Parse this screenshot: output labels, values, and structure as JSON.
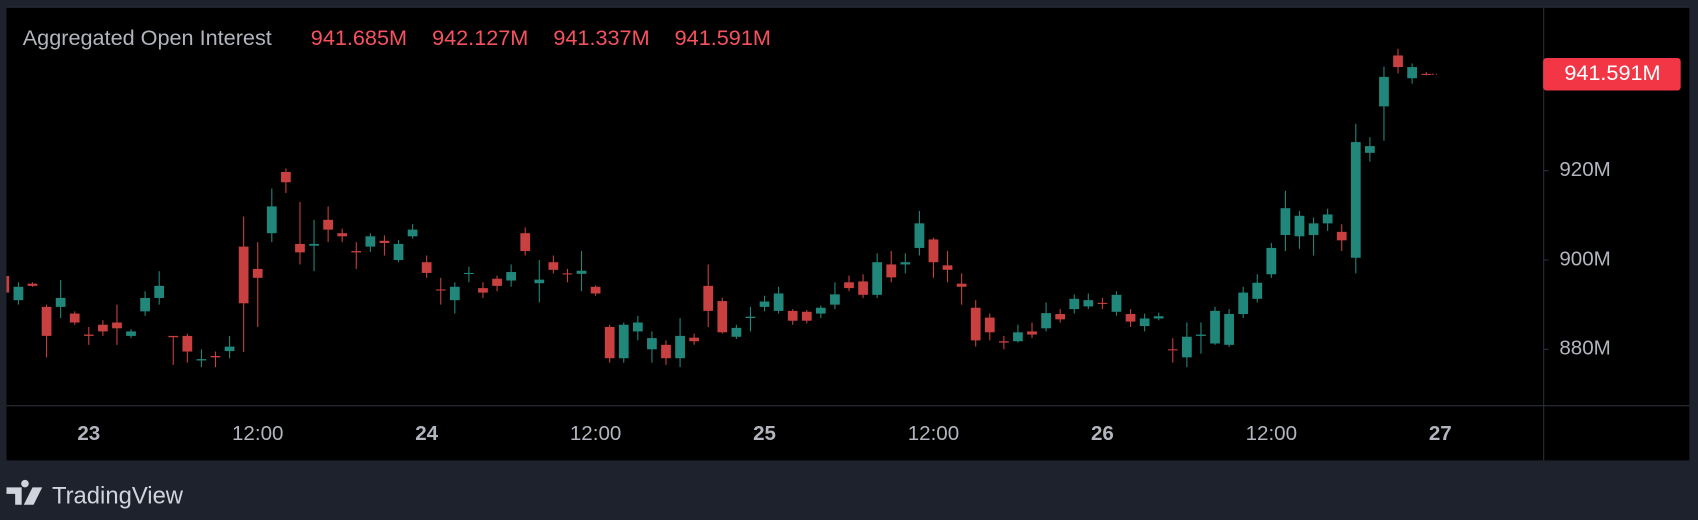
{
  "chart_data": {
    "type": "candlestick",
    "title": "Aggregated Open Interest",
    "last_value_labels": [
      "941.685M",
      "942.127M",
      "941.337M",
      "941.591M"
    ],
    "source": "TradingView",
    "up_color": "#22877b",
    "down_color": "#c8403f",
    "label_color": "#f7525f",
    "grid": false,
    "categories": [
      null,
      null,
      null,
      null,
      null,
      null,
      "23",
      null,
      null,
      null,
      null,
      null,
      null,
      null,
      null,
      null,
      null,
      null,
      "12:00",
      null,
      null,
      null,
      null,
      null,
      null,
      null,
      null,
      null,
      null,
      null,
      "24",
      null,
      null,
      null,
      null,
      null,
      null,
      null,
      null,
      null,
      null,
      null,
      "12:00",
      null,
      null,
      null,
      null,
      null,
      null,
      null,
      null,
      null,
      null,
      null,
      "25",
      null,
      null,
      null,
      null,
      null,
      null,
      null,
      null,
      null,
      null,
      null,
      "12:00",
      null,
      null,
      null,
      null,
      null,
      null,
      null,
      null,
      null,
      null,
      null,
      "26",
      null,
      null,
      null,
      null,
      null,
      null,
      null,
      null,
      null,
      null,
      null,
      "12:00",
      null,
      null,
      null,
      null,
      null,
      null,
      null,
      null,
      null,
      null,
      null,
      "27"
    ],
    "series": [
      {
        "name": "Aggregated Open Interest",
        "open": [
          896.4,
          891,
          894.7,
          889.5,
          889.5,
          888,
          883.3,
          885.5,
          886,
          883,
          888.5,
          891.5,
          883,
          883,
          877.5,
          878.5,
          879.6,
          903,
          898,
          906,
          919.7,
          903.6,
          903.2,
          909,
          906,
          902,
          903,
          904.3,
          900,
          905.3,
          899.5,
          893.4,
          891,
          896.9,
          893.7,
          895.8,
          895.4,
          906,
          894.8,
          899.5,
          897,
          896.9,
          894,
          885,
          878,
          884,
          880,
          881,
          878,
          882.6,
          894.2,
          890.8,
          882.8,
          887,
          889.5,
          888.6,
          888.6,
          888.4,
          888,
          890,
          895,
          895.2,
          892.2,
          899,
          899,
          902.7,
          904.6,
          898.8,
          894.7,
          889.3,
          887.1,
          881.8,
          881.8,
          884,
          884.7,
          887.9,
          889,
          889.6,
          890.4,
          888.4,
          887.9,
          885.2,
          886.9,
          880,
          878.2,
          883,
          881.3,
          881,
          887.9,
          891.3,
          896.8,
          905.6,
          905.3,
          905.6,
          908.2,
          906.3,
          900.5,
          924,
          934.4,
          945.8,
          940.7,
          941.685,
          null
        ],
        "high": [
          897.6,
          895,
          895,
          890,
          895.5,
          888.5,
          885,
          886.5,
          890,
          884.5,
          893,
          897.5,
          883,
          883.5,
          880,
          879.5,
          883,
          909.7,
          904,
          916,
          920.5,
          913,
          909,
          912,
          907,
          904,
          906,
          905.5,
          904.5,
          908,
          901,
          896,
          895,
          898.5,
          895,
          896.5,
          899,
          907.3,
          900,
          901,
          898,
          902,
          894.3,
          885.5,
          886,
          887.5,
          884,
          882,
          887,
          883.5,
          899,
          891.5,
          885.5,
          889.5,
          892,
          894,
          889,
          888.8,
          889.8,
          895,
          896.5,
          896.8,
          901.5,
          902,
          901.5,
          911,
          905,
          902,
          897,
          891,
          888,
          883,
          885.5,
          886,
          890.5,
          889,
          892.3,
          892.5,
          891.5,
          893,
          889,
          888,
          888.2,
          882.5,
          886,
          886,
          889.5,
          889,
          894,
          896.8,
          903.8,
          915.5,
          911,
          909.5,
          911.5,
          908,
          930.5,
          927.5,
          943.3,
          947.3,
          944,
          942.127,
          null
        ],
        "low": [
          891.5,
          890,
          894,
          878.2,
          887,
          885.5,
          881,
          883,
          881,
          882.5,
          887.5,
          890,
          876.5,
          877,
          876,
          876,
          878,
          879.4,
          885,
          904,
          915,
          899,
          897.5,
          904,
          904,
          898,
          901.8,
          901,
          899.5,
          904.8,
          896,
          890,
          888,
          895,
          891.5,
          893,
          894,
          901,
          890.5,
          897,
          895,
          893,
          892,
          877,
          877,
          882,
          877,
          876.5,
          876,
          881,
          885,
          883.5,
          882.3,
          884,
          888.5,
          888,
          885.5,
          885.8,
          887,
          889,
          893,
          891.5,
          891.5,
          895,
          897,
          901,
          896,
          895,
          890,
          880.6,
          882,
          880,
          881.5,
          882.5,
          884,
          886,
          888,
          889,
          889,
          887.5,
          885,
          884,
          886.5,
          877,
          876,
          879,
          881,
          880.5,
          887,
          890.5,
          896,
          902,
          902.5,
          901,
          906.5,
          902,
          897,
          922,
          926.7,
          941.8,
          939.5,
          941.337,
          null
        ],
        "close": [
          892.7,
          894,
          894.2,
          883,
          891.5,
          886,
          883,
          884,
          884.7,
          884,
          891.5,
          894.2,
          882.7,
          879.5,
          877.8,
          878.2,
          880.6,
          890.3,
          896,
          912,
          917.4,
          901.7,
          903.6,
          906.8,
          905.3,
          901.7,
          905.3,
          903.8,
          903.6,
          906.8,
          897.1,
          893.2,
          894,
          897.1,
          892.7,
          894.2,
          897.3,
          902,
          895.6,
          897.8,
          896.9,
          897.6,
          892.5,
          878,
          885.5,
          886,
          882.5,
          878,
          883,
          881.8,
          888.6,
          883.8,
          884.8,
          887.3,
          890.7,
          892.5,
          886.4,
          886.4,
          889.3,
          892.3,
          893.7,
          892.2,
          899.5,
          896.1,
          899.5,
          908.2,
          899.5,
          897.8,
          894,
          882,
          883.8,
          881.5,
          883.8,
          883.3,
          888.1,
          886.7,
          891.3,
          891,
          890.2,
          892.2,
          886.2,
          886.9,
          887.4,
          879.8,
          882.8,
          883.3,
          888.6,
          887.9,
          892.7,
          894.9,
          902.7,
          911.6,
          909.9,
          908.2,
          910.2,
          904.4,
          926.4,
          925.5,
          941,
          943.2,
          943.2,
          941.591,
          null
        ]
      }
    ],
    "ylim": [
      867.5,
      956.5
    ],
    "yticks": [
      {
        "value": 880,
        "label": "880M"
      },
      {
        "value": 900,
        "label": "900M"
      },
      {
        "value": 920,
        "label": "920M"
      }
    ]
  }
}
